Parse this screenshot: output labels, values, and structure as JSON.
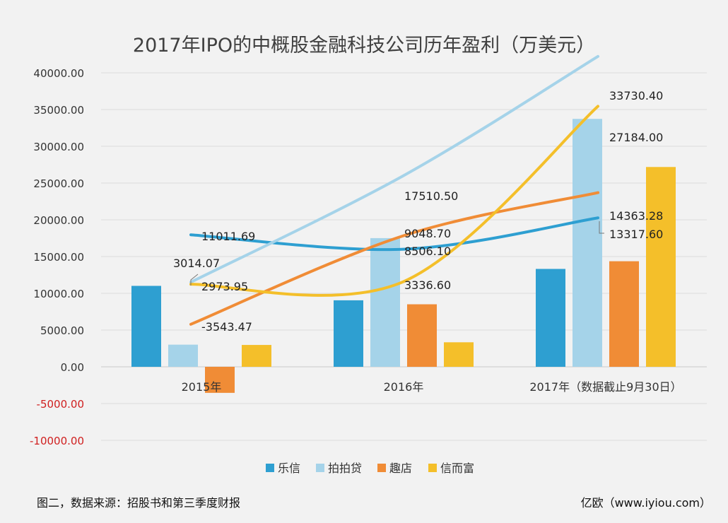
{
  "footer": {
    "source": "图二，数据来源：招股书和第三季度财报",
    "credit": "亿欧（www.iyiou.com）"
  },
  "chart_data": {
    "type": "bar",
    "title": "2017年IPO的中概股金融科技公司历年盈利（万美元）",
    "categories": [
      "2015年",
      "2016年",
      "2017年（数据截止9月30日）"
    ],
    "ylim": [
      -10000,
      40000
    ],
    "yticks": [
      "-10000.00",
      "-5000.00",
      "0.00",
      "5000.00",
      "10000.00",
      "15000.00",
      "20000.00",
      "25000.00",
      "30000.00",
      "35000.00",
      "40000.00"
    ],
    "grid": true,
    "legend_position": "bottom",
    "series": [
      {
        "name": "乐信",
        "color": "#2e9fd1",
        "values": [
          11011.69,
          9048.7,
          13317.6
        ],
        "labels": [
          "11011.69",
          "9048.70",
          "13317.60"
        ]
      },
      {
        "name": "拍拍贷",
        "color": "#a5d3e9",
        "values": [
          3014.07,
          17510.5,
          33730.4
        ],
        "labels": [
          "3014.07",
          "17510.50",
          "33730.40"
        ]
      },
      {
        "name": "趣店",
        "color": "#f08c36",
        "values": [
          -3543.47,
          8506.1,
          14363.28
        ],
        "labels": [
          "-3543.47",
          "8506.10",
          "14363.28"
        ]
      },
      {
        "name": "信而富",
        "color": "#f4bf2a",
        "values": [
          2973.95,
          3336.6,
          27184.0
        ],
        "labels": [
          "2973.95",
          "3336.60",
          "27184.00"
        ]
      }
    ]
  }
}
